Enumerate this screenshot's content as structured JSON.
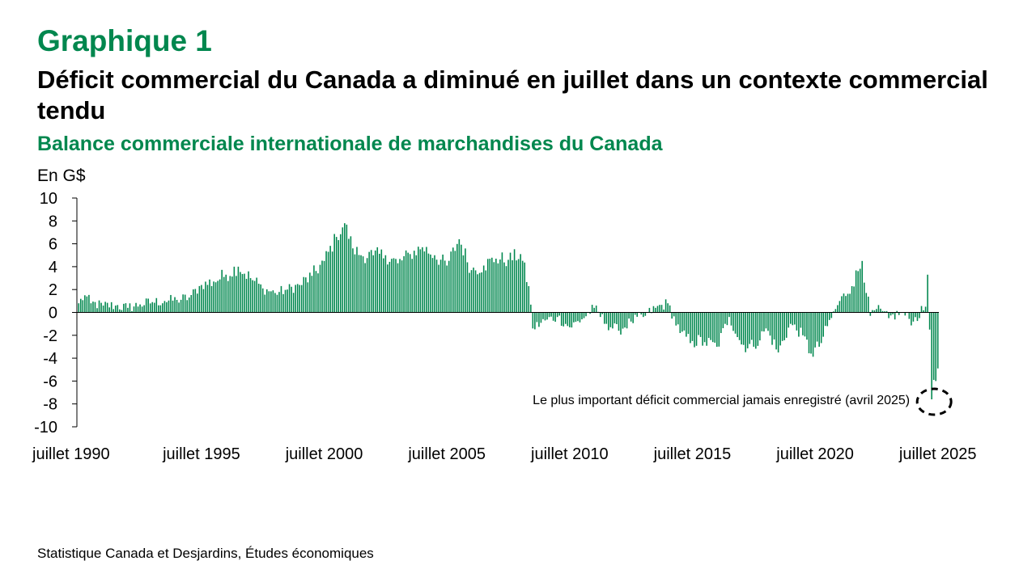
{
  "header": {
    "graph_number": "Graphique 1",
    "title": "Déficit commercial du Canada a diminué en juillet dans un contexte commercial tendu",
    "subtitle": "Balance commerciale internationale de marchandises du Canada"
  },
  "footer": {
    "source": "Statistique Canada et Desjardins, Études économiques"
  },
  "chart_data": {
    "type": "bar",
    "title": "Déficit commercial du Canada a diminué en juillet dans un contexte commercial tendu",
    "subtitle": "Balance commerciale internationale de marchandises du Canada",
    "ylabel": "En G$",
    "ylim": [
      -10,
      10
    ],
    "y_ticks": [
      10,
      8,
      6,
      4,
      2,
      0,
      -2,
      -4,
      -6,
      -8,
      -10
    ],
    "x_start": "1990-07",
    "x_end": "2025-07",
    "x_tick_labels": [
      "juillet 1990",
      "juillet 1995",
      "juillet 2000",
      "juillet 2005",
      "juillet 2010",
      "juillet 2015",
      "juillet 2020",
      "juillet 2025"
    ],
    "bar_color": "#00874e",
    "grid": false,
    "series": [
      {
        "anchors": [
          [
            "1990-07",
            0.8
          ],
          [
            "1990-10",
            1.5
          ],
          [
            "1991-01",
            0.8
          ],
          [
            "1991-07",
            0.6
          ],
          [
            "1992-01",
            0.6
          ],
          [
            "1992-07",
            0.4
          ],
          [
            "1993-01",
            0.7
          ],
          [
            "1993-07",
            0.9
          ],
          [
            "1994-01",
            1.0
          ],
          [
            "1994-07",
            1.1
          ],
          [
            "1995-01",
            1.3
          ],
          [
            "1995-07",
            2.4
          ],
          [
            "1996-01",
            2.7
          ],
          [
            "1996-07",
            3.3
          ],
          [
            "1997-01",
            4.0
          ],
          [
            "1997-07",
            3.0
          ],
          [
            "1998-01",
            2.1
          ],
          [
            "1998-07",
            1.7
          ],
          [
            "1999-01",
            2.0
          ],
          [
            "1999-07",
            2.4
          ],
          [
            "2000-01",
            3.2
          ],
          [
            "2000-07",
            4.5
          ],
          [
            "2001-01",
            6.6
          ],
          [
            "2001-05",
            7.8
          ],
          [
            "2001-09",
            5.6
          ],
          [
            "2002-01",
            5.0
          ],
          [
            "2002-07",
            5.0
          ],
          [
            "2003-01",
            5.0
          ],
          [
            "2003-07",
            4.3
          ],
          [
            "2004-01",
            5.1
          ],
          [
            "2004-07",
            5.7
          ],
          [
            "2005-01",
            5.0
          ],
          [
            "2005-07",
            4.1
          ],
          [
            "2006-01",
            6.4
          ],
          [
            "2006-07",
            3.7
          ],
          [
            "2007-01",
            4.1
          ],
          [
            "2007-07",
            4.7
          ],
          [
            "2008-01",
            4.6
          ],
          [
            "2008-07",
            5.1
          ],
          [
            "2008-11",
            2.3
          ],
          [
            "2009-01",
            -1.4
          ],
          [
            "2009-07",
            -0.7
          ],
          [
            "2010-01",
            -0.4
          ],
          [
            "2010-07",
            -1.3
          ],
          [
            "2011-01",
            -0.6
          ],
          [
            "2011-07",
            0.4
          ],
          [
            "2012-01",
            -1.0
          ],
          [
            "2012-07",
            -1.6
          ],
          [
            "2013-01",
            -0.8
          ],
          [
            "2013-07",
            -0.4
          ],
          [
            "2014-01",
            0.4
          ],
          [
            "2014-07",
            0.8
          ],
          [
            "2015-01",
            -1.8
          ],
          [
            "2015-07",
            -2.5
          ],
          [
            "2016-01",
            -2.6
          ],
          [
            "2016-07",
            -3.0
          ],
          [
            "2017-01",
            -0.4
          ],
          [
            "2017-07",
            -2.8
          ],
          [
            "2018-01",
            -3.0
          ],
          [
            "2018-07",
            -1.4
          ],
          [
            "2019-01",
            -3.5
          ],
          [
            "2019-07",
            -1.0
          ],
          [
            "2020-01",
            -2.0
          ],
          [
            "2020-05",
            -3.6
          ],
          [
            "2020-09",
            -3.0
          ],
          [
            "2021-01",
            -1.2
          ],
          [
            "2021-07",
            1.0
          ],
          [
            "2022-01",
            2.3
          ],
          [
            "2022-06",
            4.5
          ],
          [
            "2022-10",
            -0.3
          ],
          [
            "2023-01",
            0.3
          ],
          [
            "2023-07",
            -0.5
          ],
          [
            "2024-01",
            0.0
          ],
          [
            "2024-07",
            -0.8
          ],
          [
            "2025-01",
            0.5
          ],
          [
            "2025-02",
            3.3
          ],
          [
            "2025-03",
            -1.5
          ],
          [
            "2025-04",
            -7.6
          ],
          [
            "2025-05",
            -5.9
          ],
          [
            "2025-06",
            -6.0
          ],
          [
            "2025-07",
            -4.9
          ]
        ]
      }
    ],
    "annotations": [
      {
        "text": "Le plus important déficit commercial jamais enregistré (avril 2025)",
        "x": "2025-04",
        "y": -7.6,
        "marker": "dashed-ellipse"
      }
    ]
  }
}
